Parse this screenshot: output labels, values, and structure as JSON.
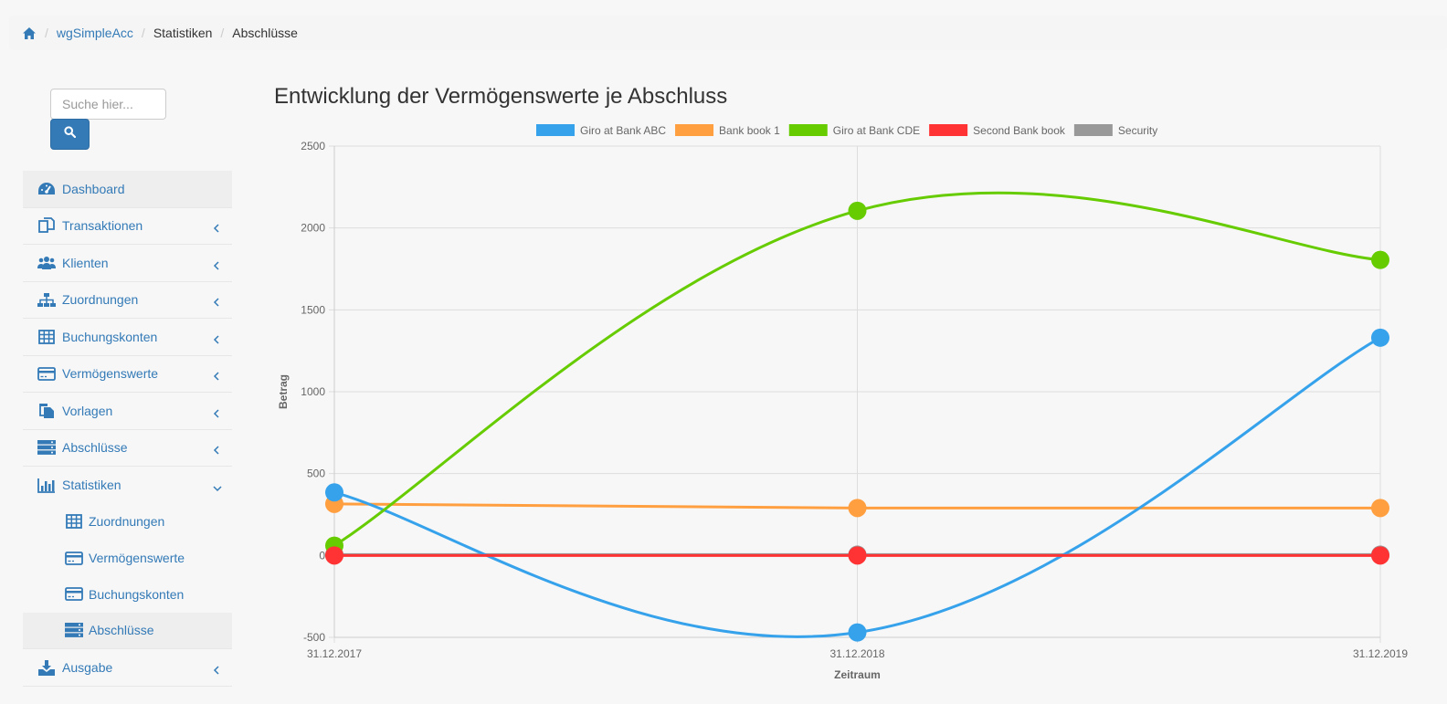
{
  "breadcrumb": {
    "items": [
      {
        "label": "wgSimpleAcc"
      },
      {
        "label": "Statistiken"
      },
      {
        "label": "Abschlüsse"
      }
    ]
  },
  "search": {
    "placeholder": "Suche hier..."
  },
  "sidebar": {
    "items": [
      {
        "label": "Dashboard",
        "icon": "dashboard-icon"
      },
      {
        "label": "Transaktionen",
        "icon": "transactions-icon"
      },
      {
        "label": "Klienten",
        "icon": "users-icon"
      },
      {
        "label": "Zuordnungen",
        "icon": "sitemap-icon"
      },
      {
        "label": "Buchungskonten",
        "icon": "table-icon"
      },
      {
        "label": "Vermögenswerte",
        "icon": "credit-card-icon"
      },
      {
        "label": "Vorlagen",
        "icon": "template-icon"
      },
      {
        "label": "Abschlüsse",
        "icon": "server-icon"
      },
      {
        "label": "Statistiken",
        "icon": "bar-chart-icon"
      },
      {
        "label": "Ausgabe",
        "icon": "download-icon"
      }
    ],
    "sub_items": [
      {
        "label": "Zuordnungen",
        "icon": "table-icon"
      },
      {
        "label": "Vermögenswerte",
        "icon": "credit-card-icon"
      },
      {
        "label": "Buchungskonten",
        "icon": "credit-card-icon"
      },
      {
        "label": "Abschlüsse",
        "icon": "server-icon"
      }
    ]
  },
  "main": {
    "title": "Entwicklung der Vermögenswerte je Abschluss"
  },
  "colors": {
    "link": "#337ab7",
    "primary": "#337ab7"
  },
  "chart_data": {
    "type": "line",
    "categories": [
      "31.12.2017",
      "31.12.2018",
      "31.12.2019"
    ],
    "series": [
      {
        "name": "Giro at Bank ABC",
        "color": "#36a2eb",
        "values": [
          385,
          -470,
          1330
        ]
      },
      {
        "name": "Bank book 1",
        "color": "#ff9f40",
        "values": [
          315,
          290,
          290
        ]
      },
      {
        "name": "Giro at Bank CDE",
        "color": "#66cc00",
        "values": [
          60,
          2105,
          1805
        ]
      },
      {
        "name": "Second Bank book",
        "color": "#ff3333",
        "values": [
          0,
          0,
          0
        ]
      },
      {
        "name": "Security",
        "color": "#999999",
        "values": [
          5,
          5,
          5
        ]
      }
    ],
    "xlabel": "Zeitraum",
    "ylabel": "Betrag",
    "ylim": [
      -500,
      2500
    ],
    "yticks": [
      "2500",
      "2000",
      "1500",
      "1000",
      "500",
      "0",
      "-500"
    ],
    "grid": true,
    "legend": "top"
  }
}
